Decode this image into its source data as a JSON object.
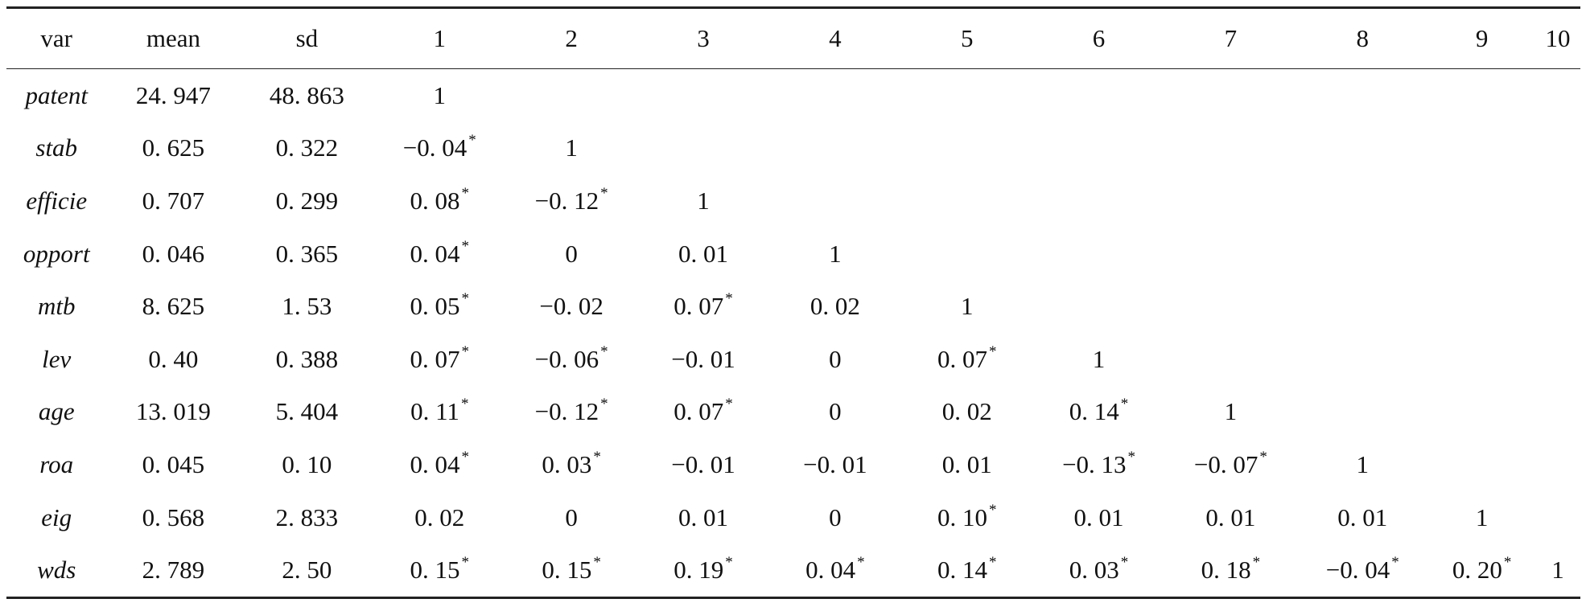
{
  "table": {
    "headers": [
      "var",
      "mean",
      "sd",
      "1",
      "2",
      "3",
      "4",
      "5",
      "6",
      "7",
      "8",
      "9",
      "10"
    ],
    "rows": [
      [
        "patent",
        "24. 947",
        "48. 863",
        "1",
        "",
        "",
        "",
        "",
        "",
        "",
        "",
        "",
        ""
      ],
      [
        "stab",
        "0. 625",
        "0. 322",
        "-0. 04*",
        "1",
        "",
        "",
        "",
        "",
        "",
        "",
        "",
        ""
      ],
      [
        "efficie",
        "0. 707",
        "0. 299",
        "0. 08*",
        "-0. 12*",
        "1",
        "",
        "",
        "",
        "",
        "",
        "",
        ""
      ],
      [
        "opport",
        "0. 046",
        "0. 365",
        "0. 04*",
        "0",
        "0. 01",
        "1",
        "",
        "",
        "",
        "",
        "",
        ""
      ],
      [
        "mtb",
        "8. 625",
        "1. 53",
        "0. 05*",
        "-0. 02",
        "0. 07*",
        "0. 02",
        "1",
        "",
        "",
        "",
        "",
        ""
      ],
      [
        "lev",
        "0. 40",
        "0. 388",
        "0. 07*",
        "-0. 06*",
        "-0. 01",
        "0",
        "0. 07*",
        "1",
        "",
        "",
        "",
        ""
      ],
      [
        "age",
        "13. 019",
        "5. 404",
        "0. 11*",
        "-0. 12*",
        "0. 07*",
        "0",
        "0. 02",
        "0. 14*",
        "1",
        "",
        "",
        ""
      ],
      [
        "roa",
        "0. 045",
        "0. 10",
        "0. 04*",
        "0. 03*",
        "-0. 01",
        "-0. 01",
        "0. 01",
        "-0. 13*",
        "-0. 07*",
        "1",
        "",
        ""
      ],
      [
        "eig",
        "0. 568",
        "2. 833",
        "0. 02",
        "0",
        "0. 01",
        "0",
        "0. 10*",
        "0. 01",
        "0. 01",
        "0. 01",
        "1",
        ""
      ],
      [
        "wds",
        "2. 789",
        "2. 50",
        "0. 15*",
        "0. 15*",
        "0. 19*",
        "0. 04*",
        "0. 14*",
        "0. 03*",
        "0. 18*",
        "-0. 04*",
        "0. 20*",
        "1"
      ]
    ]
  }
}
